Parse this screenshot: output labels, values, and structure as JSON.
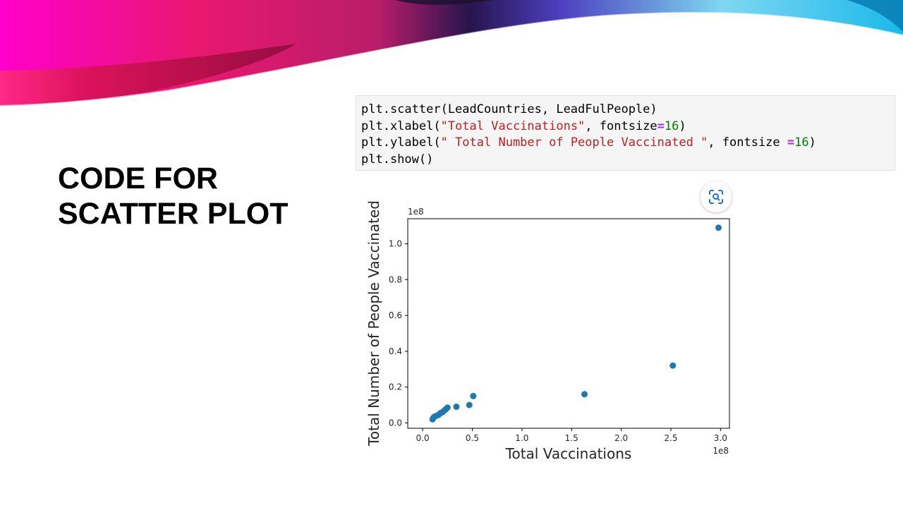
{
  "slide": {
    "title": "CODE FOR SCATTER PLOT"
  },
  "code": {
    "line1": "plt.scatter(LeadCountries, LeadFulPeople)",
    "line2_a": "plt.xlabel(",
    "line2_str": "\"Total Vaccinations\"",
    "line2_b": ", fontsize",
    "line2_op": "=",
    "line2_num": "16",
    "line2_c": ")",
    "line3_a": "plt.ylabel(",
    "line3_str": "\" Total Number of People Vaccinated \"",
    "line3_b": ", fontsize ",
    "line3_op": "=",
    "line3_num": "16",
    "line3_c": ")",
    "line4": "plt.show()"
  },
  "screenshot_button": {
    "icon": "screenshot-icon"
  },
  "colors": {
    "marker": "#1f77b4",
    "banner_magenta": "#ff00cc",
    "banner_cyan": "#22d3ee"
  },
  "chart_data": {
    "type": "scatter",
    "xlabel": "Total Vaccinations",
    "ylabel": "Total Number of People Vaccinated",
    "x_offset_text": "1e8",
    "y_offset_text": "1e8",
    "x_ticks": [
      "0.0",
      "0.5",
      "1.0",
      "1.5",
      "2.0",
      "2.5",
      "3.0"
    ],
    "y_ticks": [
      "0.0",
      "0.2",
      "0.4",
      "0.6",
      "0.8",
      "1.0"
    ],
    "xlim": [
      -0.15,
      3.09
    ],
    "ylim": [
      -0.03,
      1.14
    ],
    "grid": false,
    "points": [
      {
        "x": 0.1,
        "y": 0.02
      },
      {
        "x": 0.11,
        "y": 0.03
      },
      {
        "x": 0.12,
        "y": 0.035
      },
      {
        "x": 0.14,
        "y": 0.04
      },
      {
        "x": 0.16,
        "y": 0.045
      },
      {
        "x": 0.18,
        "y": 0.055
      },
      {
        "x": 0.2,
        "y": 0.06
      },
      {
        "x": 0.22,
        "y": 0.07
      },
      {
        "x": 0.23,
        "y": 0.075
      },
      {
        "x": 0.25,
        "y": 0.085
      },
      {
        "x": 0.34,
        "y": 0.09
      },
      {
        "x": 0.47,
        "y": 0.1
      },
      {
        "x": 0.51,
        "y": 0.15
      },
      {
        "x": 1.63,
        "y": 0.16
      },
      {
        "x": 2.52,
        "y": 0.32
      },
      {
        "x": 2.98,
        "y": 1.09
      }
    ]
  }
}
